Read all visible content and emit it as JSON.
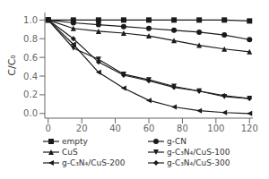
{
  "chart_data": {
    "type": "line",
    "ylabel": "C/C₀",
    "xlim": [
      -2,
      122
    ],
    "ylim": [
      -0.05,
      1.08
    ],
    "xticks": [
      0,
      20,
      40,
      60,
      80,
      100,
      120
    ],
    "yticks": [
      {
        "value": 0.0,
        "label": "0.0"
      },
      0.2,
      0.4,
      0.6,
      0.8,
      {
        "value": 1.0,
        "label": "1.0"
      }
    ],
    "grid": false,
    "legend": "bottom",
    "x": [
      0,
      15,
      30,
      45,
      60,
      75,
      90,
      105,
      120
    ],
    "series": [
      {
        "name": "empty",
        "color": "#1a1a1a",
        "marker": "square",
        "values": [
          1.0,
          1.0,
          1.0,
          1.0,
          1.0,
          1.0,
          1.0,
          1.0,
          0.99
        ]
      },
      {
        "name": "g-CN",
        "color": "#1a1a1a",
        "marker": "circle",
        "values": [
          1.0,
          0.97,
          0.95,
          0.93,
          0.91,
          0.89,
          0.87,
          0.84,
          0.79
        ]
      },
      {
        "name": "CuS",
        "color": "#1a1a1a",
        "marker": "triangle-up",
        "values": [
          1.0,
          0.91,
          0.88,
          0.86,
          0.83,
          0.78,
          0.73,
          0.69,
          0.66
        ]
      },
      {
        "name": "g-C₃N₄/CuS-100",
        "color": "#1a1a1a",
        "marker": "triangle-down",
        "values": [
          1.0,
          0.7,
          0.58,
          0.42,
          0.36,
          0.29,
          0.24,
          0.18,
          0.16
        ]
      },
      {
        "name": "g-C₃N₄/CuS-200",
        "color": "#1a1a1a",
        "marker": "triangle-left",
        "values": [
          1.0,
          0.74,
          0.44,
          0.27,
          0.14,
          0.07,
          0.03,
          0.01,
          0.0
        ]
      },
      {
        "name": "g-C₃N₄/CuS-300",
        "color": "#1a1a1a",
        "marker": "diamond",
        "values": [
          1.0,
          0.8,
          0.55,
          0.41,
          0.35,
          0.28,
          0.24,
          0.19,
          0.16
        ]
      }
    ]
  }
}
